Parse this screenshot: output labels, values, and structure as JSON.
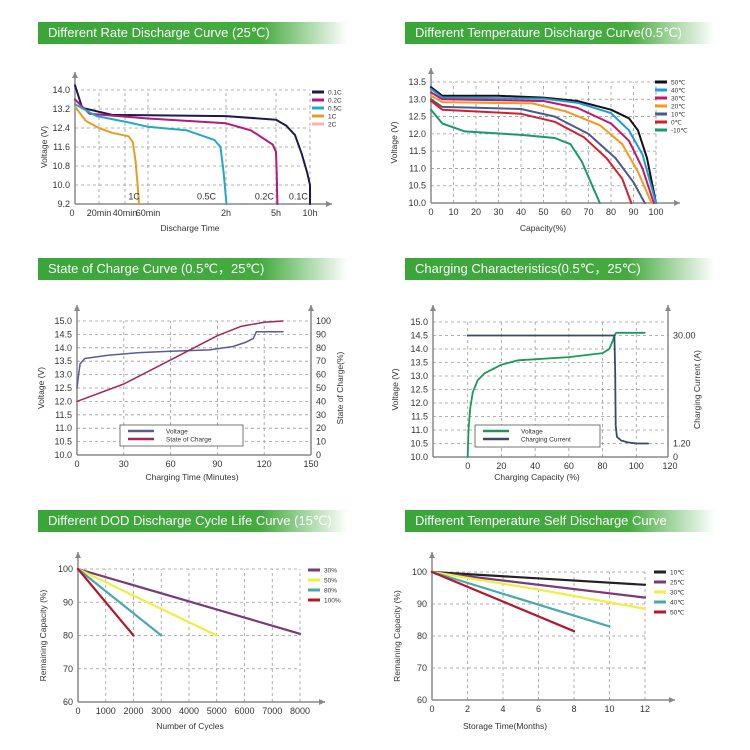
{
  "chart_data": [
    {
      "type": "line",
      "title": "Different Rate Discharge Curve (25℃)",
      "xlabel": "Discharge Time",
      "ylabel": "Voltage (V)",
      "x_unit": "hours",
      "x_ticks": [
        0,
        0.333,
        0.667,
        1,
        2,
        5,
        10
      ],
      "x_tick_labels": [
        "0",
        "20min",
        "40min",
        "60min",
        "2h",
        "5h",
        "10h"
      ],
      "y_ticks": [
        9.2,
        10.0,
        10.8,
        11.6,
        12.4,
        13.2,
        14.0
      ],
      "y_tick_labels": [
        "9.2",
        "10.0",
        "10.8",
        "11.6",
        "12.4",
        "13.2",
        "14.0"
      ],
      "ylim": [
        9.2,
        14.0
      ],
      "grid": true,
      "legend": "right",
      "annotations": [
        {
          "text": "1C",
          "x": 0.8,
          "y": 9.4
        },
        {
          "text": "0.5C",
          "x": 1.75,
          "y": 9.4
        },
        {
          "text": "0.2C",
          "x": 4.3,
          "y": 9.4
        },
        {
          "text": "0.1C",
          "x": 8.3,
          "y": 9.4
        }
      ],
      "series": [
        {
          "name": "0.1C",
          "color": "#1c1a4e",
          "points": [
            [
              0,
              14.2
            ],
            [
              0.1,
              13.25
            ],
            [
              0.5,
              12.95
            ],
            [
              2,
              12.9
            ],
            [
              5,
              12.75
            ],
            [
              6.5,
              12.5
            ],
            [
              7.8,
              12.1
            ],
            [
              8.8,
              11.3
            ],
            [
              9.6,
              10.5
            ],
            [
              10,
              10.0
            ],
            [
              10,
              9.2
            ]
          ]
        },
        {
          "name": "0.2C",
          "color": "#b5197a",
          "points": [
            [
              0,
              13.6
            ],
            [
              0.2,
              13.0
            ],
            [
              1,
              12.8
            ],
            [
              2,
              12.6
            ],
            [
              3.5,
              12.3
            ],
            [
              4.8,
              11.7
            ],
            [
              5.0,
              11.4
            ],
            [
              5.1,
              10.5
            ],
            [
              5.2,
              9.2
            ]
          ]
        },
        {
          "name": "0.5C",
          "color": "#23a8c8",
          "points": [
            [
              0,
              13.4
            ],
            [
              0.3,
              12.9
            ],
            [
              0.7,
              12.65
            ],
            [
              1,
              12.45
            ],
            [
              1.5,
              12.3
            ],
            [
              1.85,
              11.9
            ],
            [
              1.93,
              11.6
            ],
            [
              1.97,
              10.5
            ],
            [
              2.03,
              9.2
            ]
          ]
        },
        {
          "name": "1C",
          "color": "#e2a020",
          "points": [
            [
              0,
              13.3
            ],
            [
              0.15,
              12.7
            ],
            [
              0.333,
              12.4
            ],
            [
              0.5,
              12.2
            ],
            [
              0.72,
              12.05
            ],
            [
              0.78,
              11.8
            ],
            [
              0.82,
              11.0
            ],
            [
              0.85,
              10.0
            ],
            [
              0.87,
              9.2
            ]
          ]
        },
        {
          "name": "2C",
          "color": "#f4b4b4",
          "points": []
        }
      ]
    },
    {
      "type": "line",
      "title": "Different Temperature Discharge Curve(0.5℃)",
      "xlabel": "Capacity(%)",
      "ylabel": "Voltage (V)",
      "xlim": [
        0,
        100
      ],
      "ylim": [
        10.0,
        13.5
      ],
      "x_ticks": [
        0,
        10,
        20,
        30,
        40,
        50,
        60,
        70,
        80,
        90,
        100
      ],
      "y_ticks": [
        10.0,
        10.5,
        11.0,
        11.5,
        12.0,
        12.5,
        13.0,
        13.5
      ],
      "y_tick_labels": [
        "10.0",
        "10.5",
        "11.0",
        "11.5",
        "12.0",
        "12.5",
        "13.0",
        "13.5"
      ],
      "grid": true,
      "legend": "right",
      "series": [
        {
          "name": "50℃",
          "color": "#111111",
          "points": [
            [
              0,
              13.35
            ],
            [
              5,
              13.1
            ],
            [
              30,
              13.1
            ],
            [
              50,
              13.05
            ],
            [
              65,
              12.95
            ],
            [
              80,
              12.7
            ],
            [
              88,
              12.45
            ],
            [
              92,
              12.1
            ],
            [
              96,
              11.3
            ],
            [
              100,
              10.0
            ]
          ]
        },
        {
          "name": "40℃",
          "color": "#1e9bd7",
          "points": [
            [
              0,
              13.3
            ],
            [
              5,
              13.05
            ],
            [
              50,
              13.02
            ],
            [
              65,
              12.9
            ],
            [
              80,
              12.6
            ],
            [
              88,
              12.1
            ],
            [
              94,
              11.4
            ],
            [
              100,
              10.0
            ]
          ]
        },
        {
          "name": "30℃",
          "color": "#c0176d",
          "points": [
            [
              0,
              13.2
            ],
            [
              5,
              13.0
            ],
            [
              50,
              12.95
            ],
            [
              65,
              12.75
            ],
            [
              80,
              12.3
            ],
            [
              88,
              11.8
            ],
            [
              94,
              11.0
            ],
            [
              99,
              10.0
            ]
          ]
        },
        {
          "name": "20℃",
          "color": "#f39a1e",
          "points": [
            [
              0,
              13.1
            ],
            [
              5,
              12.92
            ],
            [
              45,
              12.88
            ],
            [
              60,
              12.65
            ],
            [
              75,
              12.25
            ],
            [
              85,
              11.7
            ],
            [
              92,
              10.9
            ],
            [
              98,
              10.0
            ]
          ]
        },
        {
          "name": "10℃",
          "color": "#4a5a8a",
          "points": [
            [
              0,
              13.0
            ],
            [
              5,
              12.78
            ],
            [
              40,
              12.72
            ],
            [
              55,
              12.5
            ],
            [
              70,
              12.0
            ],
            [
              82,
              11.3
            ],
            [
              90,
              10.6
            ],
            [
              95,
              10.0
            ]
          ]
        },
        {
          "name": "0℃",
          "color": "#d0202e",
          "points": [
            [
              0,
              12.95
            ],
            [
              5,
              12.7
            ],
            [
              40,
              12.58
            ],
            [
              55,
              12.35
            ],
            [
              68,
              11.9
            ],
            [
              78,
              11.3
            ],
            [
              85,
              10.7
            ],
            [
              89,
              10.0
            ]
          ]
        },
        {
          "name": "-10℃",
          "color": "#1a9a6b",
          "points": [
            [
              0,
              12.7
            ],
            [
              5,
              12.3
            ],
            [
              15,
              12.07
            ],
            [
              40,
              11.97
            ],
            [
              55,
              11.88
            ],
            [
              62,
              11.7
            ],
            [
              67,
              11.2
            ],
            [
              71,
              10.6
            ],
            [
              75,
              10.0
            ]
          ]
        }
      ]
    },
    {
      "type": "line",
      "title": "State of Charge Curve (0.5℃，25℃)",
      "xlabel": "Charging Time (Minutes)",
      "ylabel": "Voltage (V)",
      "y2label": "State of Charge(%)",
      "xlim": [
        0,
        150
      ],
      "ylim": [
        10.0,
        15.0
      ],
      "y2lim": [
        0,
        100
      ],
      "x_ticks": [
        0,
        30,
        60,
        90,
        120,
        150
      ],
      "y_ticks": [
        10.0,
        10.5,
        11.0,
        11.5,
        12.0,
        12.5,
        13.0,
        13.5,
        14.0,
        14.5,
        15.0
      ],
      "y_tick_labels": [
        "10.0",
        "10.5",
        "11.0",
        "11.5",
        "12.0",
        "12.5",
        "13.0",
        "13.5",
        "14.0",
        "14.5",
        "15.0"
      ],
      "y2_ticks": [
        0,
        10,
        20,
        30,
        40,
        50,
        60,
        70,
        80,
        90,
        100
      ],
      "grid": true,
      "legend": "bottom-center (inside)",
      "series": [
        {
          "name": "Voltage",
          "axis": "left",
          "color": "#5a5a9a",
          "points": [
            [
              0,
              12.5
            ],
            [
              1,
              13.0
            ],
            [
              2,
              13.4
            ],
            [
              5,
              13.6
            ],
            [
              20,
              13.72
            ],
            [
              40,
              13.82
            ],
            [
              60,
              13.87
            ],
            [
              85,
              13.92
            ],
            [
              100,
              14.05
            ],
            [
              108,
              14.2
            ],
            [
              113,
              14.35
            ],
            [
              115,
              14.6
            ],
            [
              132,
              14.6
            ]
          ]
        },
        {
          "name": "State of Charge",
          "axis": "right",
          "color": "#a0285a",
          "points": [
            [
              0,
              40
            ],
            [
              30,
              53
            ],
            [
              60,
              71
            ],
            [
              75,
              80
            ],
            [
              90,
              89
            ],
            [
              105,
              96
            ],
            [
              120,
              99
            ],
            [
              132,
              100
            ]
          ]
        }
      ]
    },
    {
      "type": "line",
      "title": "Charging Characteristics(0.5℃，25℃)",
      "xlabel": "Charging Capacity (%)",
      "ylabel": "Voltage (V)",
      "y2label": "Charging Current (A)",
      "xlim": [
        0,
        120
      ],
      "ylim": [
        10.0,
        15.0
      ],
      "x_ticks": [
        0,
        20,
        40,
        60,
        80,
        100,
        120
      ],
      "y_ticks": [
        10.0,
        10.5,
        11.0,
        11.5,
        12.0,
        12.5,
        13.0,
        13.5,
        14.0,
        14.5,
        15.0
      ],
      "y_tick_labels": [
        "10.0",
        "10.5",
        "11.0",
        "11.5",
        "12.0",
        "12.5",
        "13.0",
        "13.5",
        "14.0",
        "14.5",
        "15.0"
      ],
      "y2_ticks": [
        0,
        1.2,
        30
      ],
      "y2_tick_labels": [
        "0",
        "1.20",
        "30.00"
      ],
      "grid": true,
      "legend": "bottom-left (inside)",
      "series": [
        {
          "name": "Voltage",
          "axis": "left",
          "color": "#1a9a5a",
          "points": [
            [
              0,
              10.0
            ],
            [
              0.5,
              11.0
            ],
            [
              1.5,
              11.8
            ],
            [
              3,
              12.4
            ],
            [
              6,
              12.85
            ],
            [
              10,
              13.1
            ],
            [
              20,
              13.42
            ],
            [
              30,
              13.58
            ],
            [
              60,
              13.7
            ],
            [
              80,
              13.85
            ],
            [
              84,
              14.0
            ],
            [
              86,
              14.3
            ],
            [
              87,
              14.5
            ],
            [
              88,
              14.6
            ],
            [
              105,
              14.6
            ]
          ]
        },
        {
          "name": "Charging Current",
          "axis": "right",
          "color": "#3a4a6a",
          "points": [
            [
              0,
              30
            ],
            [
              87,
              30
            ],
            [
              87.5,
              20
            ],
            [
              87.8,
              6
            ],
            [
              88.5,
              3
            ],
            [
              91,
              2
            ],
            [
              95,
              1.5
            ],
            [
              100,
              1.2
            ],
            [
              107,
              1.2
            ]
          ]
        }
      ]
    },
    {
      "type": "line",
      "title": "Different DOD Discharge Cycle Life Curve (15℃)",
      "xlabel": "Number of Cycles",
      "ylabel": "Remaining Capacity (%)",
      "xlim": [
        0,
        8000
      ],
      "ylim": [
        60,
        100
      ],
      "x_ticks": [
        0,
        1000,
        2000,
        3000,
        4000,
        5000,
        6000,
        7000,
        8000
      ],
      "y_ticks": [
        60,
        70,
        80,
        90,
        100
      ],
      "grid": true,
      "legend": "right",
      "series": [
        {
          "name": "30%",
          "color": "#7a3a7a",
          "points": [
            [
              0,
              100
            ],
            [
              8000,
              80.5
            ]
          ]
        },
        {
          "name": "50%",
          "color": "#f0ee40",
          "points": [
            [
              0,
              100
            ],
            [
              5000,
              80
            ]
          ]
        },
        {
          "name": "80%",
          "color": "#4aa8b0",
          "points": [
            [
              0,
              100
            ],
            [
              3000,
              80
            ]
          ]
        },
        {
          "name": "100%",
          "color": "#b01a2a",
          "points": [
            [
              0,
              100
            ],
            [
              2000,
              80
            ]
          ]
        }
      ]
    },
    {
      "type": "line",
      "title": "Different Temperature Self Discharge Curve",
      "xlabel": "Storage Time(Months)",
      "ylabel": "Remaining Capacity (%)",
      "xlim": [
        0,
        12
      ],
      "ylim": [
        60,
        100
      ],
      "x_ticks": [
        0,
        2,
        4,
        6,
        8,
        10,
        12
      ],
      "y_ticks": [
        60,
        70,
        80,
        90,
        100
      ],
      "grid": true,
      "legend": "right",
      "series": [
        {
          "name": "10℃",
          "color": "#222222",
          "points": [
            [
              0,
              100
            ],
            [
              12,
              96
            ]
          ]
        },
        {
          "name": "25℃",
          "color": "#7a3a7a",
          "points": [
            [
              0,
              100
            ],
            [
              12,
              92
            ]
          ]
        },
        {
          "name": "30℃",
          "color": "#f0ee40",
          "points": [
            [
              0,
              100
            ],
            [
              6,
              94.5
            ],
            [
              12,
              88.5
            ]
          ]
        },
        {
          "name": "40℃",
          "color": "#4aa8b0",
          "points": [
            [
              0,
              100
            ],
            [
              10,
              83
            ]
          ]
        },
        {
          "name": "50℃",
          "color": "#b01a2a",
          "points": [
            [
              0,
              100
            ],
            [
              8,
              81.5
            ]
          ]
        }
      ]
    }
  ]
}
